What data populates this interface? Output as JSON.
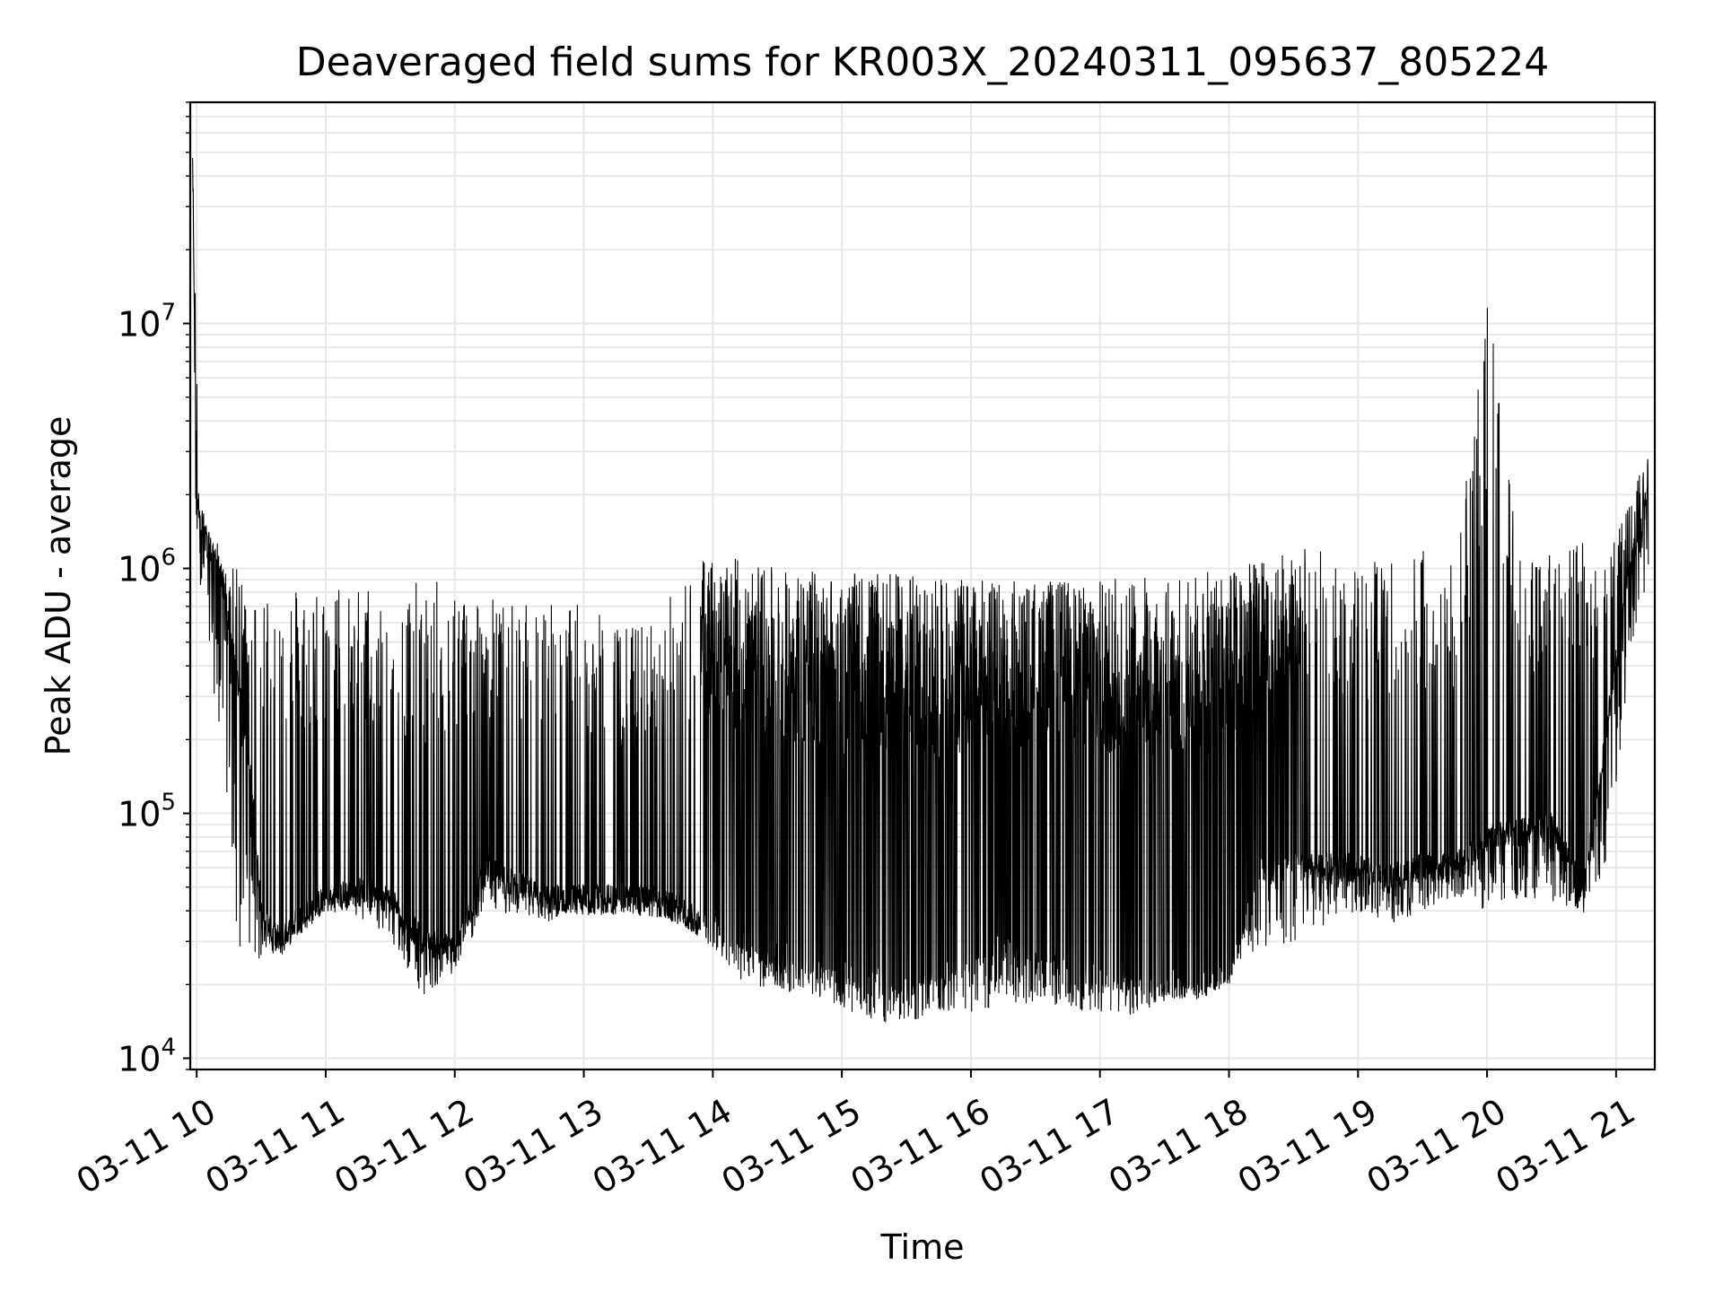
{
  "chart_data": {
    "type": "line",
    "title": "Deaveraged field sums for KR003X_20240311_095637_805224",
    "xlabel": "Time",
    "ylabel": "Peak ADU - average",
    "yscale": "log",
    "ylim": [
      9000,
      80000000
    ],
    "xlim": [
      "2024-03-11 09:57",
      "2024-03-11 21:18"
    ],
    "x_ticks": [
      "03-11 10",
      "03-11 11",
      "03-11 12",
      "03-11 13",
      "03-11 14",
      "03-11 15",
      "03-11 16",
      "03-11 17",
      "03-11 18",
      "03-11 19",
      "03-11 20",
      "03-11 21"
    ],
    "y_ticks": [
      {
        "value": 10000,
        "base": "10",
        "exp": "4"
      },
      {
        "value": 100000,
        "base": "10",
        "exp": "5"
      },
      {
        "value": 1000000,
        "base": "10",
        "exp": "6"
      },
      {
        "value": 10000000,
        "base": "10",
        "exp": "7"
      }
    ],
    "grid": true,
    "line_color": "#000000",
    "grid_color": "#e6e6e6",
    "series": [
      {
        "x": [
          "2024-03-11 09:58",
          "2024-03-11 10:00",
          "2024-03-11 10:03",
          "2024-03-11 10:06",
          "2024-03-11 10:10",
          "2024-03-11 10:15",
          "2024-03-11 10:20",
          "2024-03-11 10:25",
          "2024-03-11 10:30",
          "2024-03-11 10:35",
          "2024-03-11 10:40",
          "2024-03-11 10:45",
          "2024-03-11 10:50",
          "2024-03-11 11:00",
          "2024-03-11 11:15",
          "2024-03-11 11:30",
          "2024-03-11 11:45",
          "2024-03-11 12:00",
          "2024-03-11 12:15",
          "2024-03-11 12:30",
          "2024-03-11 12:45",
          "2024-03-11 13:00",
          "2024-03-11 13:15",
          "2024-03-11 13:30",
          "2024-03-11 13:45",
          "2024-03-11 13:55",
          "2024-03-11 14:15",
          "2024-03-11 14:30",
          "2024-03-11 14:45",
          "2024-03-11 15:00",
          "2024-03-11 15:15",
          "2024-03-11 15:30",
          "2024-03-11 15:45",
          "2024-03-11 16:00",
          "2024-03-11 16:15",
          "2024-03-11 16:30",
          "2024-03-11 16:45",
          "2024-03-11 17:00",
          "2024-03-11 17:15",
          "2024-03-11 17:30",
          "2024-03-11 17:45",
          "2024-03-11 18:00",
          "2024-03-11 18:15",
          "2024-03-11 18:30",
          "2024-03-11 18:45",
          "2024-03-11 19:00",
          "2024-03-11 19:15",
          "2024-03-11 19:30",
          "2024-03-11 19:45",
          "2024-03-11 20:00",
          "2024-03-11 20:15",
          "2024-03-11 20:30",
          "2024-03-11 20:45",
          "2024-03-11 20:55",
          "2024-03-11 21:05",
          "2024-03-11 21:15"
        ],
        "y": [
          50000000,
          2000000,
          1500000,
          1200000,
          1100000,
          600000,
          300000,
          150000,
          40000,
          32000,
          30000,
          35000,
          38000,
          45000,
          48000,
          45000,
          30000,
          28000,
          60000,
          50000,
          45000,
          45000,
          45000,
          45000,
          40000,
          35000,
          30000,
          26000,
          25000,
          22000,
          22000,
          20000,
          22000,
          25000,
          28000,
          25000,
          25000,
          22000,
          22000,
          20000,
          20000,
          22000,
          60000,
          60000,
          60000,
          60000,
          55000,
          60000,
          60000,
          80000,
          85000,
          90000,
          50000,
          200000,
          900000,
          2000000
        ],
        "y_high": [
          50000000,
          9500000,
          1400000,
          1400000,
          1000000,
          1000000,
          1000000,
          700000,
          950000,
          950000,
          900000,
          900000,
          900000,
          900000,
          900000,
          800000,
          900000,
          900000,
          800000,
          700000,
          800000,
          700000,
          600000,
          600000,
          900000,
          1100000,
          1100000,
          1000000,
          1000000,
          950000,
          950000,
          950000,
          900000,
          900000,
          900000,
          900000,
          900000,
          900000,
          950000,
          950000,
          950000,
          1000000,
          1100000,
          1200000,
          1200000,
          1000000,
          1200000,
          1200000,
          1200000,
          13500000,
          1200000,
          1200000,
          1300000,
          1300000,
          1800000,
          3000000
        ],
        "y_low": [
          2000000,
          1100000,
          700000,
          500000,
          200000,
          80000,
          25000,
          25000,
          25000,
          26000,
          28000,
          32000,
          33000,
          40000,
          38000,
          30000,
          18000,
          22000,
          40000,
          38000,
          35000,
          38000,
          38000,
          38000,
          35000,
          30000,
          20000,
          19000,
          18000,
          16000,
          14000,
          14000,
          15000,
          15000,
          16000,
          17000,
          16000,
          15000,
          15000,
          17000,
          17000,
          20000,
          28000,
          30000,
          35000,
          40000,
          35000,
          40000,
          45000,
          40000,
          45000,
          40000,
          38000,
          60000,
          300000,
          1000000
        ]
      }
    ]
  }
}
